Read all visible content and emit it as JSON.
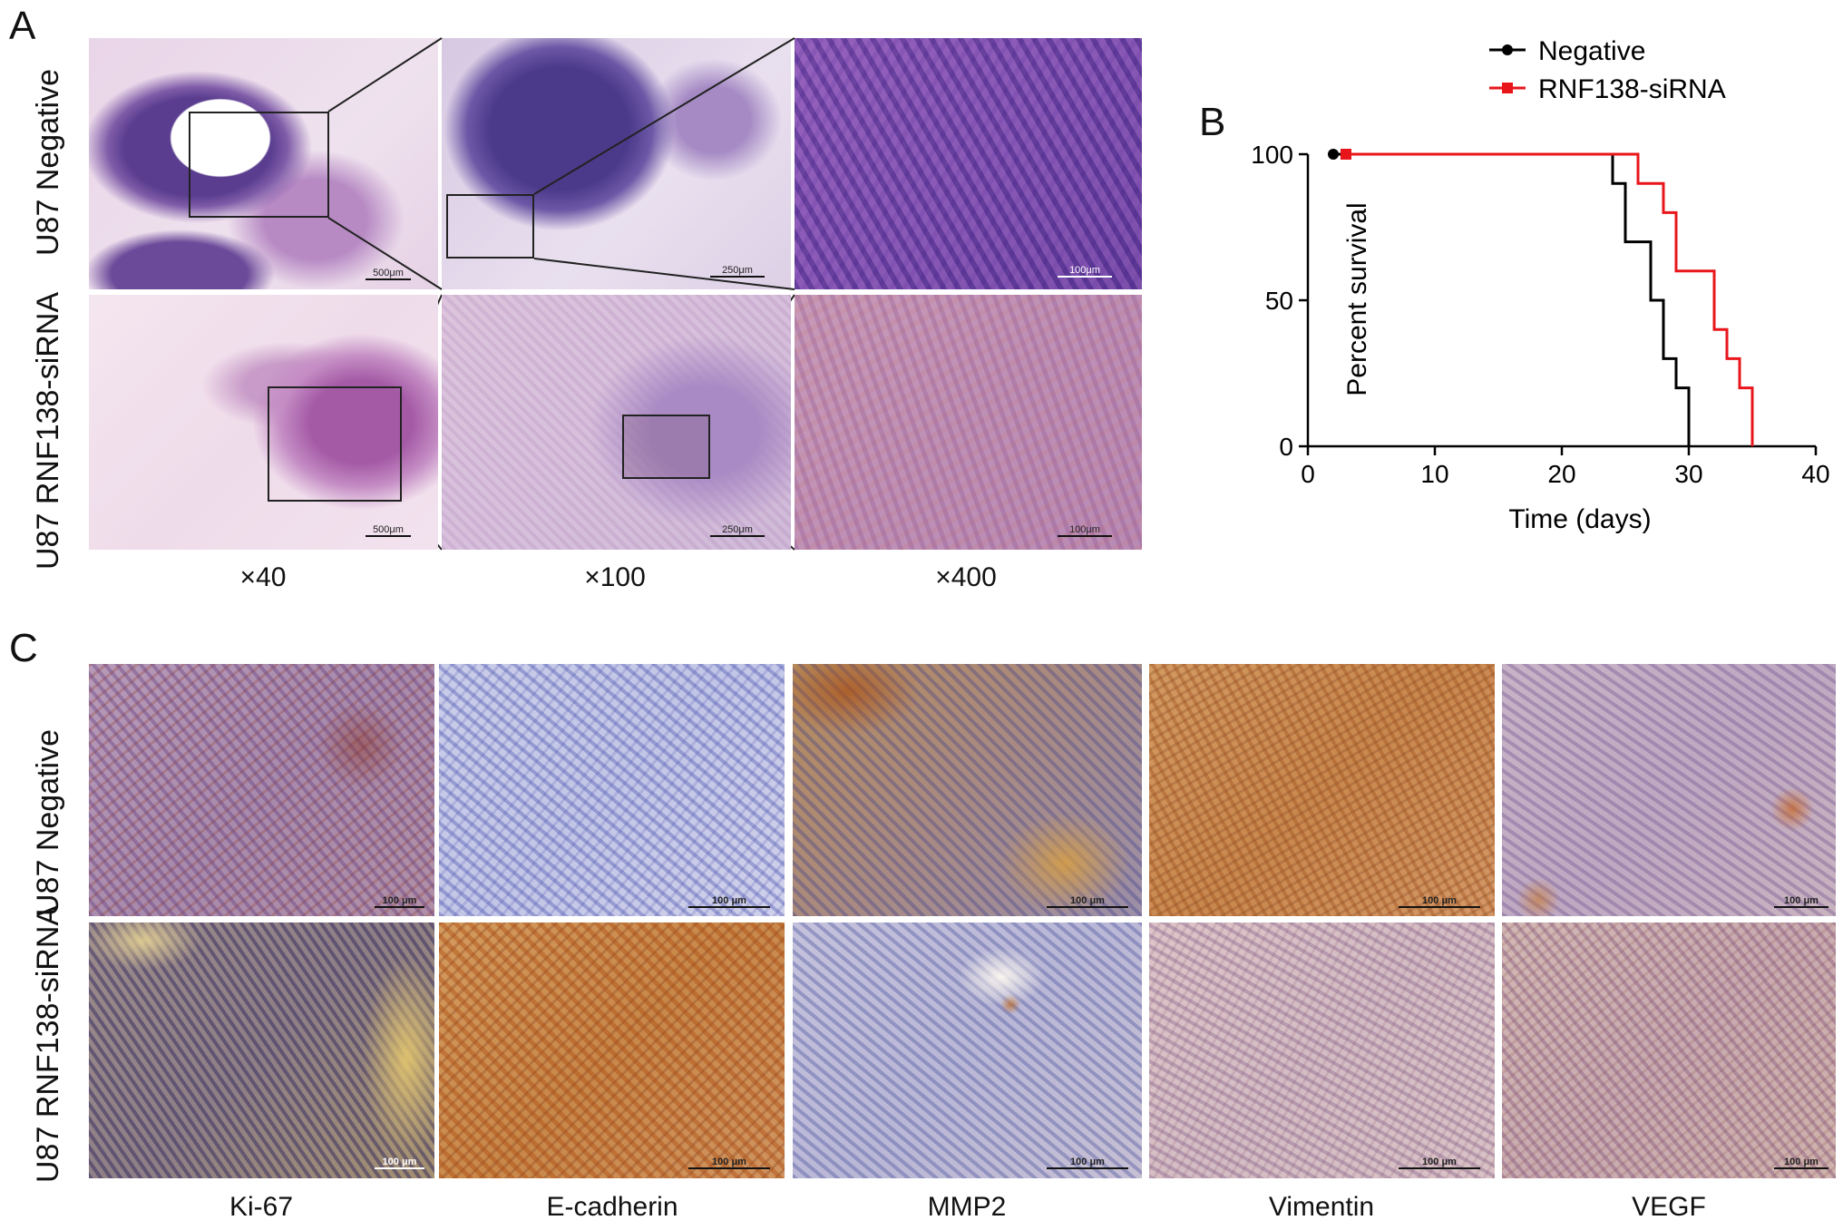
{
  "panel_a": {
    "letter": "A",
    "rows": [
      "U87 Negative",
      "U87 RNF138-siRNA"
    ],
    "columns": [
      "×40",
      "×100",
      "×400"
    ],
    "scalebars": [
      "500μm",
      "250μm",
      "100μm",
      "500μm",
      "250μm",
      "100μm"
    ]
  },
  "panel_b": {
    "letter": "B",
    "legend": [
      "Negative",
      "RNF138-siRNA"
    ]
  },
  "panel_c": {
    "letter": "C",
    "rows": [
      "U87 Negative",
      "U87 RNF138-siRNA"
    ],
    "columns": [
      "Ki-67",
      "E-cadherin",
      "MMP2",
      "Vimentin",
      "VEGF"
    ],
    "scalebar": "100 μm"
  },
  "colors": {
    "negative": "#000000",
    "sirna": "#e8161b"
  },
  "chart_data": {
    "type": "line",
    "subtype": "kaplan-meier-step",
    "xlabel": "Time (days)",
    "ylabel": "Percent survival",
    "xlim": [
      0,
      40
    ],
    "ylim": [
      0,
      100
    ],
    "xticks": [
      0,
      10,
      20,
      30,
      40
    ],
    "yticks": [
      0,
      50,
      100
    ],
    "legend_position": "top-right",
    "series": [
      {
        "name": "Negative",
        "color": "#000000",
        "marker": "circle",
        "x": [
          2,
          24,
          25,
          27,
          28,
          29,
          30
        ],
        "y": [
          100,
          90,
          70,
          50,
          30,
          20,
          0
        ]
      },
      {
        "name": "RNF138-siRNA",
        "color": "#e8161b",
        "marker": "square",
        "x": [
          3,
          26,
          28,
          29,
          32,
          33,
          34,
          35
        ],
        "y": [
          100,
          90,
          80,
          60,
          40,
          30,
          20,
          0
        ]
      }
    ]
  }
}
